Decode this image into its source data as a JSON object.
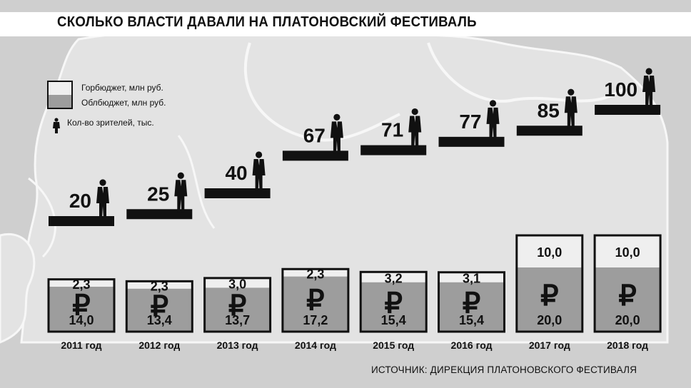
{
  "title": "СКОЛЬКО ВЛАСТИ ДАВАЛИ НА ПЛАТОНОВСКИЙ ФЕСТИВАЛЬ",
  "legend": {
    "city_budget": "Горбюджет, млн руб.",
    "regional_budget": "Облбюджет, млн руб.",
    "viewers": "Кол-во зрителей, тыс."
  },
  "source": "ИСТОЧНИК: ДИРЕКЦИЯ ПЛАТОНОВСКОГО ФЕСТИВАЛЯ",
  "currency_symbol": "₽",
  "colors": {
    "city_budget": "#efefef",
    "regional_budget": "#9d9d9d",
    "outline": "#111111",
    "background": "#cfcfcf"
  },
  "chart_data": {
    "type": "bar",
    "stacked": true,
    "categories": [
      "2011 год",
      "2012 год",
      "2013 год",
      "2014 год",
      "2015 год",
      "2016 год",
      "2017 год",
      "2018 год"
    ],
    "series": [
      {
        "name": "Облбюджет, млн руб.",
        "values": [
          14.0,
          13.4,
          13.7,
          17.2,
          15.4,
          15.4,
          20.0,
          20.0
        ],
        "labels": [
          "14,0",
          "13,4",
          "13,7",
          "17,2",
          "15,4",
          "15,4",
          "20,0",
          "20,0"
        ]
      },
      {
        "name": "Горбюджет, млн руб.",
        "values": [
          2.3,
          2.3,
          3.0,
          2.3,
          3.2,
          3.1,
          10.0,
          10.0
        ],
        "labels": [
          "2,3",
          "2,3",
          "3,0",
          "2,3",
          "3,2",
          "3,1",
          "10,0",
          "10,0"
        ]
      }
    ],
    "viewers": {
      "name": "Кол-во зрителей, тыс.",
      "values": [
        20,
        25,
        40,
        67,
        71,
        77,
        85,
        100
      ]
    },
    "grid": false
  }
}
